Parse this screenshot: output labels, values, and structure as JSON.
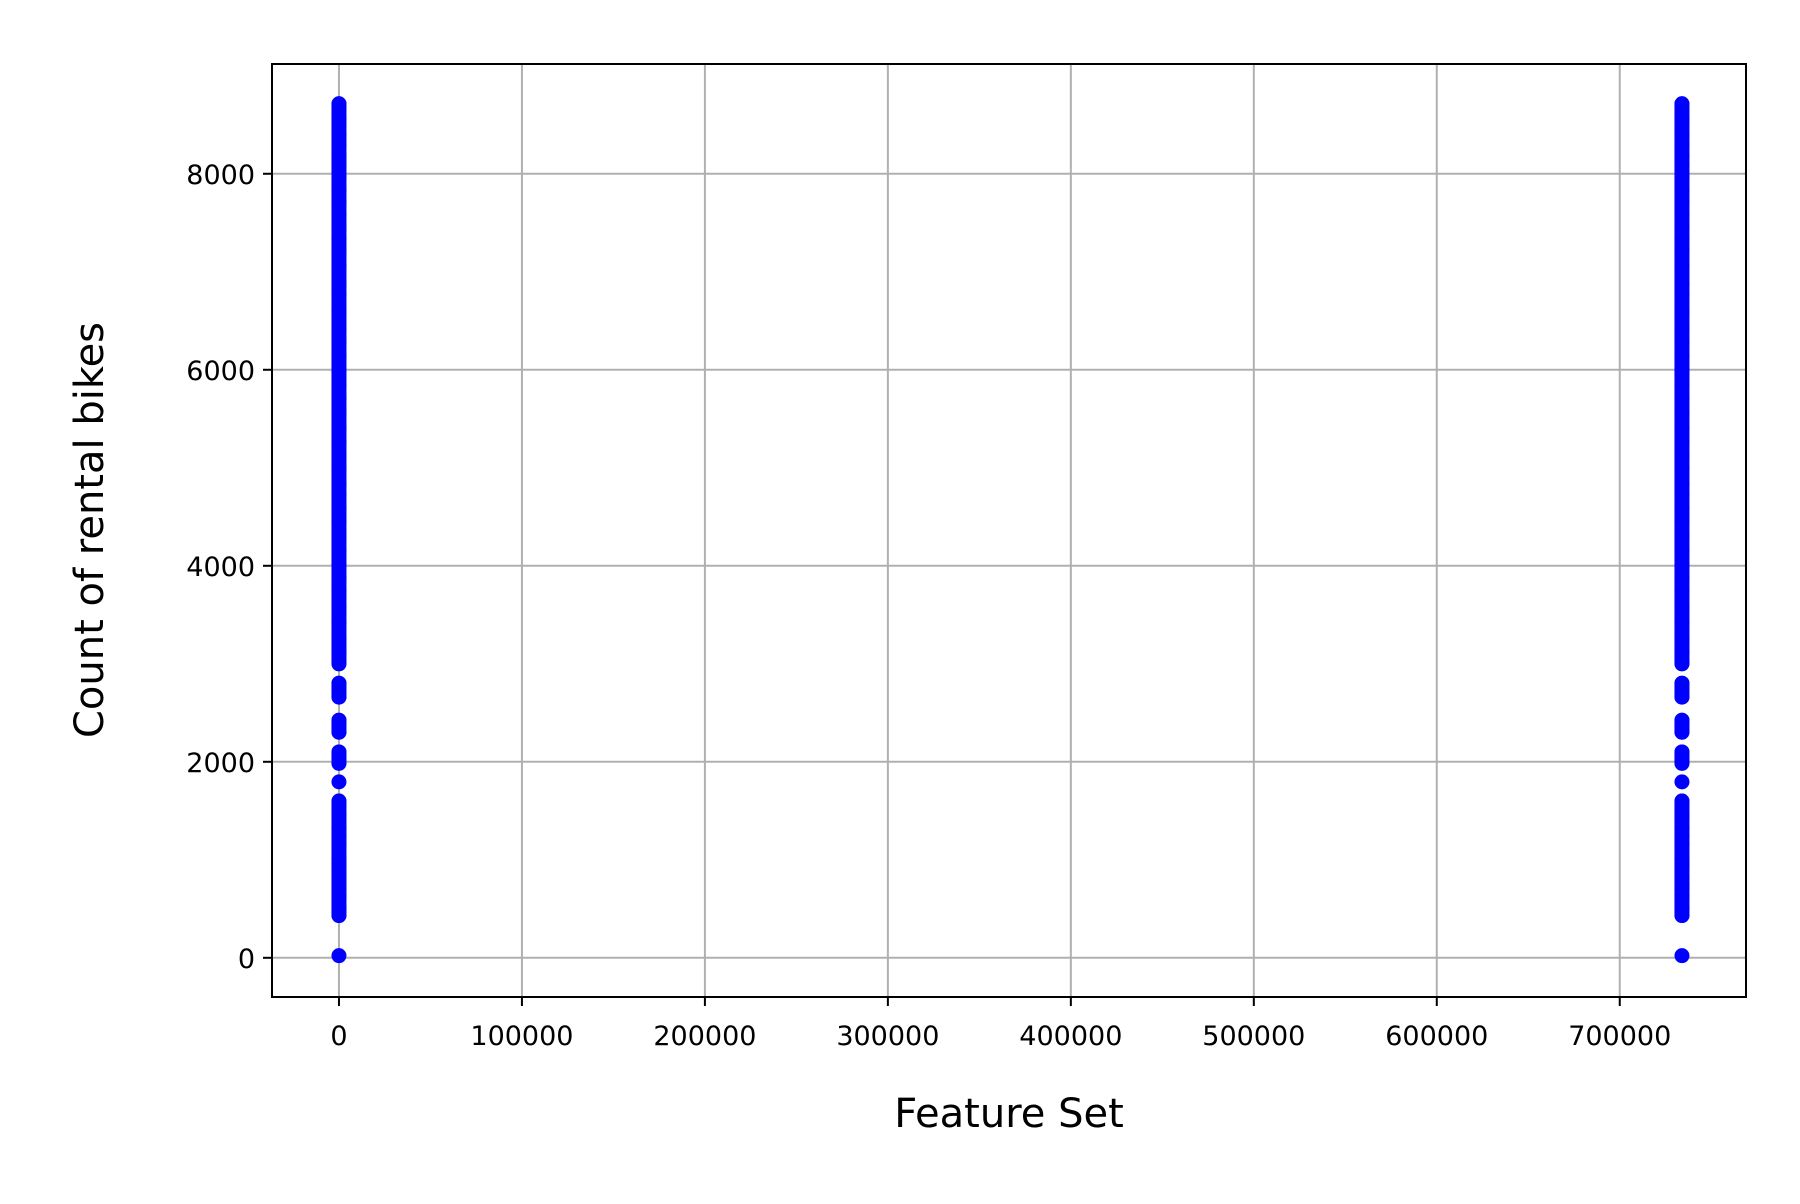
{
  "chart_data": {
    "type": "scatter",
    "xlabel": "Feature Set",
    "ylabel": "Count of rental bikes",
    "xlim": [
      -36600,
      769000
    ],
    "ylim": [
      -400,
      9120
    ],
    "x_ticks": [
      0,
      100000,
      200000,
      300000,
      400000,
      500000,
      600000,
      700000
    ],
    "x_tick_labels": [
      "0",
      "100000",
      "200000",
      "300000",
      "400000",
      "500000",
      "600000",
      "700000"
    ],
    "y_ticks": [
      0,
      2000,
      4000,
      6000,
      8000
    ],
    "y_tick_labels": [
      "0",
      "2000",
      "4000",
      "6000",
      "8000"
    ],
    "grid": true,
    "marker_color": "#0000ff",
    "series": [
      {
        "x": 0,
        "y": [
          22,
          431,
          506,
          627,
          705,
          754,
          822,
          920,
          959,
          1000,
          1167,
          1248,
          1321,
          1450,
          1600,
          1795,
          1985,
          2100,
          2302,
          2424,
          2660,
          2802,
          3000,
          3115,
          3249,
          3423,
          3574,
          3740,
          3873,
          4010,
          4154,
          4301,
          4459,
          4595,
          4727,
          4840,
          4990,
          5119,
          5260,
          5409,
          5558,
          5710,
          5847,
          5986,
          6140,
          6290,
          6421,
          6591,
          6770,
          6883,
          7058,
          7216,
          7333,
          7458,
          7580,
          7710,
          7836,
          7965,
          8090,
          8173,
          8294,
          8395,
          8555,
          8714
        ]
      },
      {
        "x": 734000,
        "y": [
          22,
          431,
          506,
          627,
          705,
          754,
          822,
          920,
          959,
          1000,
          1167,
          1248,
          1321,
          1450,
          1600,
          1795,
          1985,
          2100,
          2302,
          2424,
          2660,
          2802,
          3000,
          3115,
          3249,
          3423,
          3574,
          3740,
          3873,
          4010,
          4154,
          4301,
          4459,
          4595,
          4727,
          4840,
          4990,
          5119,
          5260,
          5409,
          5558,
          5710,
          5847,
          5986,
          6140,
          6290,
          6421,
          6591,
          6770,
          6883,
          7058,
          7216,
          7333,
          7458,
          7580,
          7710,
          7836,
          7965,
          8090,
          8173,
          8294,
          8395,
          8555,
          8714
        ]
      }
    ]
  }
}
